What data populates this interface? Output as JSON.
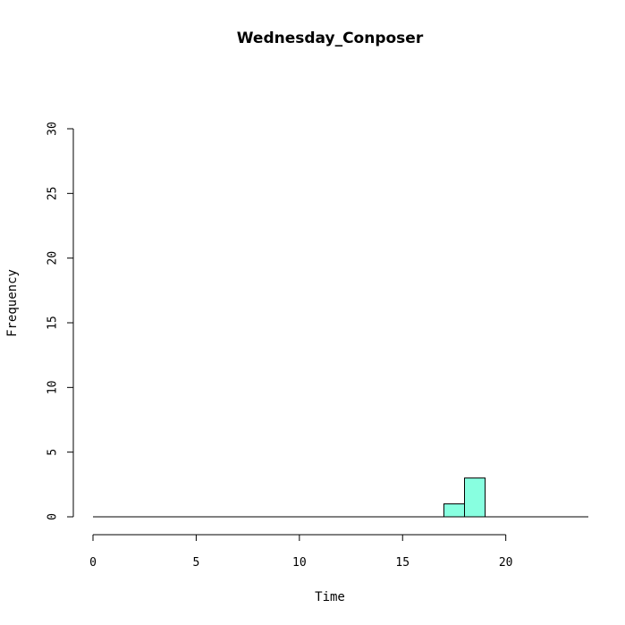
{
  "chart_data": {
    "type": "bar",
    "title": "Wednesday_Conposer",
    "xlabel": "Time",
    "ylabel": "Frequency",
    "xlim": [
      0,
      24
    ],
    "ylim": [
      0,
      30
    ],
    "xticks": [
      0,
      5,
      10,
      15,
      20
    ],
    "yticks": [
      0,
      5,
      10,
      15,
      20,
      25,
      30
    ],
    "bin_width": 1,
    "bins": [
      {
        "start": 17,
        "end": 18,
        "count": 1
      },
      {
        "start": 18,
        "end": 19,
        "count": 3
      }
    ],
    "bar_color": "#88FFE0",
    "grid": false
  }
}
